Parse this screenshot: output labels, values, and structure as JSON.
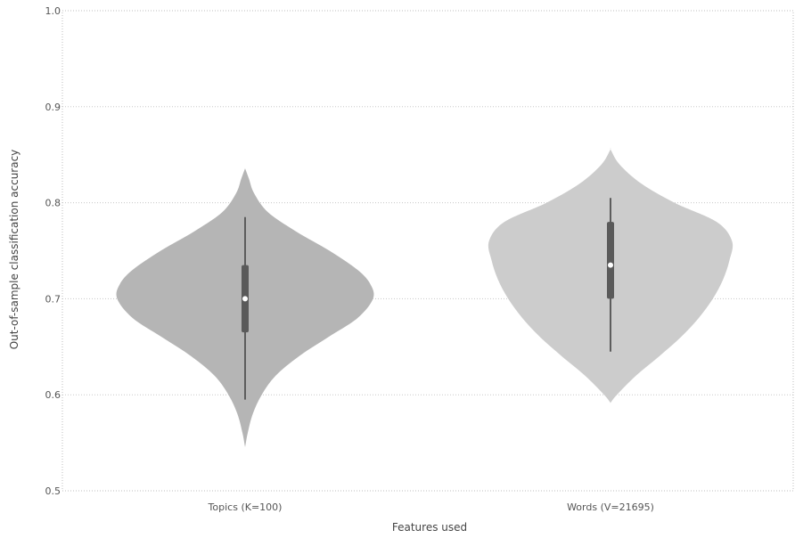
{
  "chart_data": {
    "type": "violin",
    "xlabel": "Features used",
    "ylabel": "Out-of-sample classification accuracy",
    "ylim": [
      0.5,
      1.0
    ],
    "y_ticks": [
      "0.5",
      "0.6",
      "0.7",
      "0.8",
      "0.9",
      "1.0"
    ],
    "grid": true,
    "categories": [
      "Topics (K=100)",
      "Words (V=21695)"
    ],
    "series": [
      {
        "min": 0.595,
        "q1": 0.665,
        "median": 0.7,
        "q3": 0.735,
        "max": 0.785,
        "extent": [
          0.547,
          0.835
        ],
        "color": "#b5b5b5",
        "density": [
          [
            0.547,
            0.002
          ],
          [
            0.56,
            0.02
          ],
          [
            0.58,
            0.06
          ],
          [
            0.6,
            0.13
          ],
          [
            0.62,
            0.24
          ],
          [
            0.64,
            0.42
          ],
          [
            0.66,
            0.65
          ],
          [
            0.68,
            0.88
          ],
          [
            0.7,
            1.0
          ],
          [
            0.715,
            0.98
          ],
          [
            0.73,
            0.88
          ],
          [
            0.75,
            0.66
          ],
          [
            0.77,
            0.4
          ],
          [
            0.79,
            0.18
          ],
          [
            0.81,
            0.07
          ],
          [
            0.825,
            0.03
          ],
          [
            0.835,
            0.002
          ]
        ]
      },
      {
        "min": 0.645,
        "q1": 0.7,
        "median": 0.735,
        "q3": 0.78,
        "max": 0.805,
        "extent": [
          0.592,
          0.855
        ],
        "color": "#cccccc",
        "density": [
          [
            0.592,
            0.002
          ],
          [
            0.6,
            0.05
          ],
          [
            0.62,
            0.2
          ],
          [
            0.64,
            0.38
          ],
          [
            0.66,
            0.55
          ],
          [
            0.68,
            0.69
          ],
          [
            0.7,
            0.8
          ],
          [
            0.72,
            0.88
          ],
          [
            0.74,
            0.93
          ],
          [
            0.76,
            0.95
          ],
          [
            0.78,
            0.83
          ],
          [
            0.8,
            0.5
          ],
          [
            0.82,
            0.24
          ],
          [
            0.84,
            0.07
          ],
          [
            0.855,
            0.002
          ]
        ]
      }
    ]
  }
}
